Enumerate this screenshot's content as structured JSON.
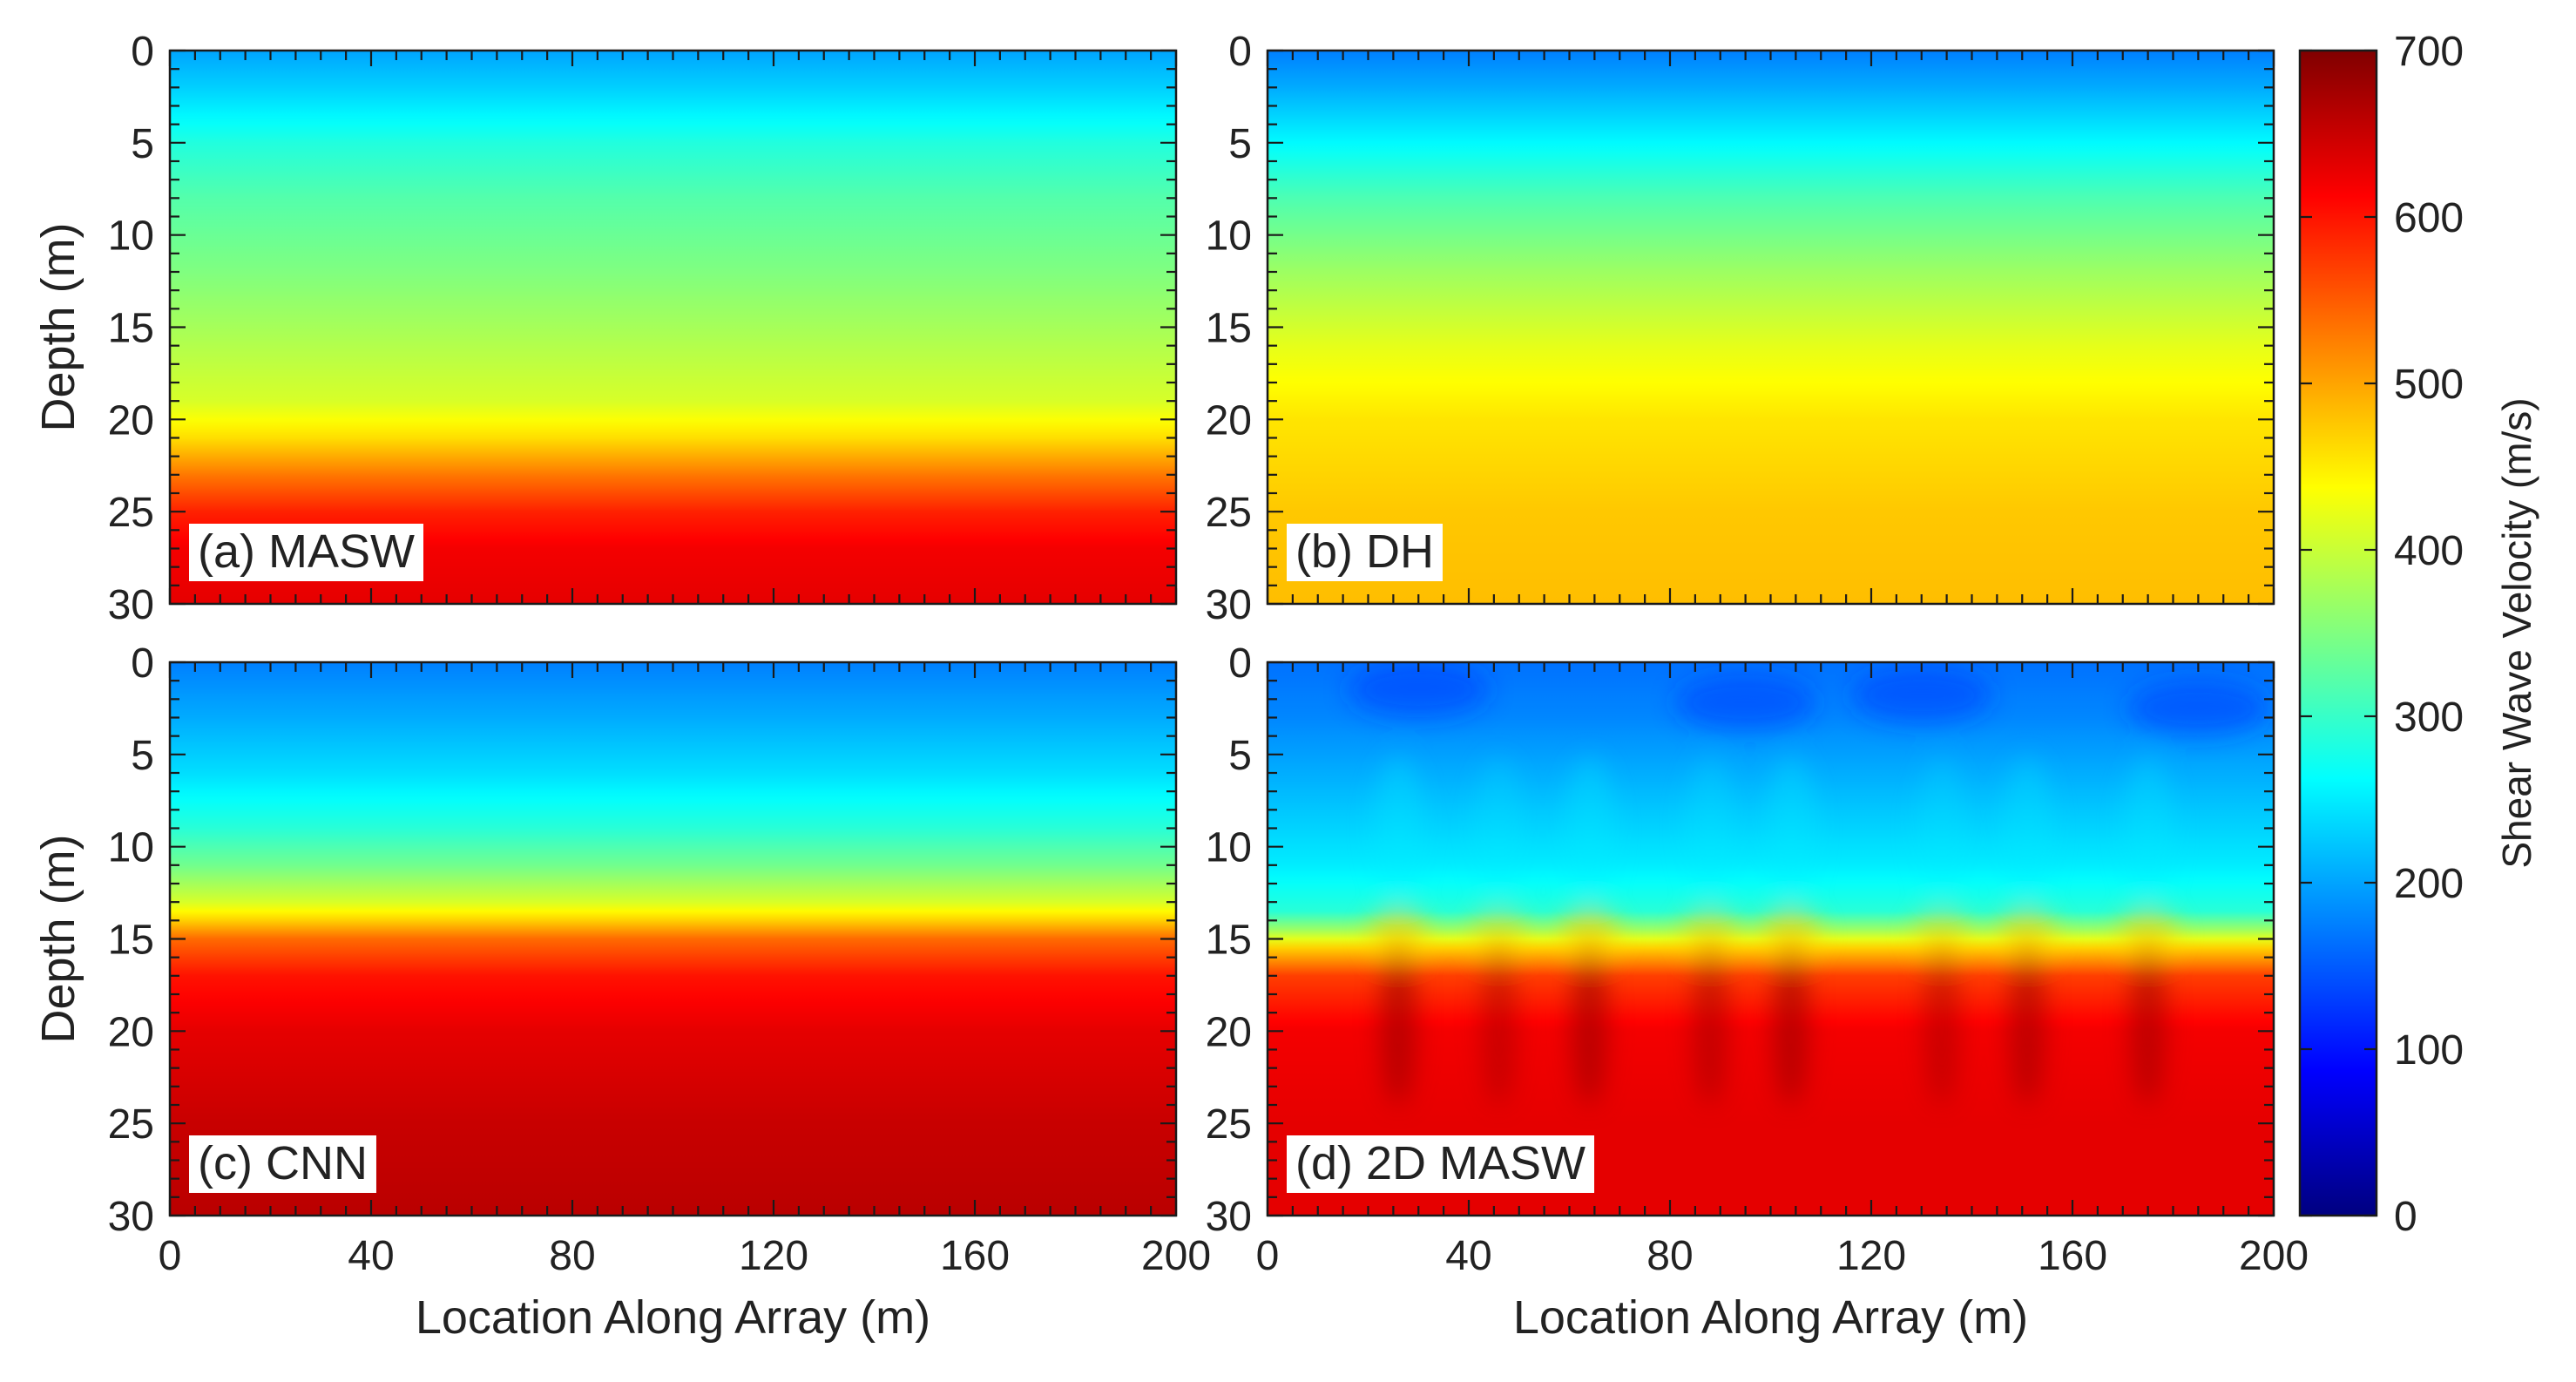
{
  "chart_data": {
    "type": "heatmap",
    "x_ticks": [
      0,
      40,
      80,
      120,
      160,
      200
    ],
    "y_ticks": [
      0,
      5,
      10,
      15,
      20,
      25,
      30
    ],
    "xlim": [
      0,
      200
    ],
    "ylim": [
      0,
      30
    ],
    "x_minor_step": 5,
    "y_minor_step": 1,
    "xlabel": "Location Along Array (m)",
    "ylabel": "Depth (m)",
    "colorbar": {
      "label": "Shear Wave Velocity (m/s)",
      "range": [
        0,
        700
      ],
      "ticks": [
        0,
        100,
        200,
        300,
        400,
        500,
        600,
        700
      ],
      "colormap": "jet"
    },
    "panels": [
      {
        "id": "a",
        "label": "(a) MASW",
        "show_ylabel": true,
        "show_xlabel": false,
        "profile": {
          "depth": [
            0,
            2,
            5,
            8,
            12,
            16,
            19,
            21,
            23,
            25,
            27,
            30
          ],
          "vs": [
            200,
            230,
            285,
            320,
            350,
            385,
            410,
            460,
            530,
            590,
            620,
            630
          ]
        }
      },
      {
        "id": "b",
        "label": "(b) DH",
        "show_ylabel": false,
        "show_xlabel": false,
        "profile": {
          "depth": [
            0,
            2,
            5,
            8,
            12,
            16,
            20,
            25,
            30
          ],
          "vs": [
            175,
            205,
            260,
            315,
            370,
            420,
            455,
            475,
            482
          ]
        }
      },
      {
        "id": "c",
        "label": "(c) CNN",
        "show_ylabel": true,
        "show_xlabel": true,
        "profile": {
          "depth": [
            0,
            3,
            6,
            9,
            11,
            13,
            14,
            15,
            17,
            20,
            25,
            30
          ],
          "vs": [
            175,
            205,
            240,
            290,
            340,
            410,
            470,
            540,
            600,
            630,
            650,
            660
          ]
        }
      },
      {
        "id": "d",
        "label": "(d) 2D MASW",
        "show_ylabel": false,
        "show_xlabel": true,
        "profile": {
          "depth": [
            0,
            3,
            7,
            11,
            13.5,
            14.5,
            15.5,
            17,
            20,
            25,
            30
          ],
          "vs": [
            165,
            180,
            215,
            250,
            290,
            370,
            470,
            570,
            620,
            630,
            630
          ]
        },
        "lateral_anomalies": {
          "x": [
            26,
            46,
            64,
            88,
            104,
            134,
            151,
            175
          ],
          "strength": [
            1.0,
            0.7,
            1.0,
            0.8,
            1.0,
            0.7,
            0.9,
            0.9
          ]
        }
      }
    ]
  }
}
